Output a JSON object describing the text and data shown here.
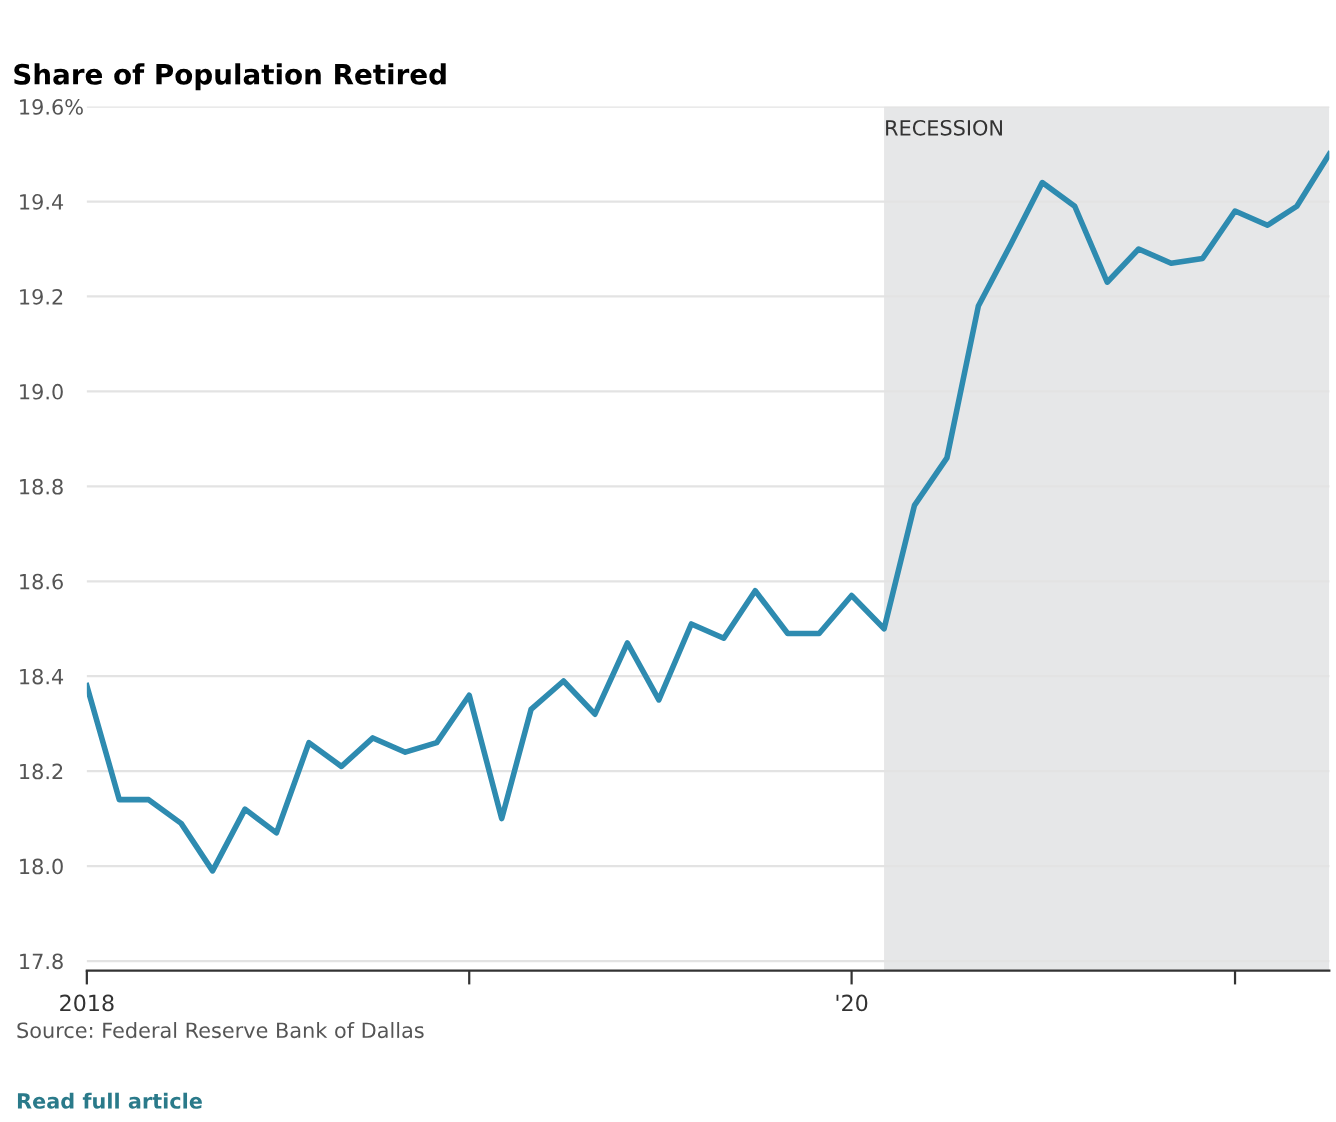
{
  "chart_data": {
    "type": "line",
    "title": "Share of Population Retired",
    "x": [
      "2018-01",
      "2018-02",
      "2018-03",
      "2018-04",
      "2018-05",
      "2018-06",
      "2018-07",
      "2018-08",
      "2018-09",
      "2018-10",
      "2018-11",
      "2018-12",
      "2019-01",
      "2019-02",
      "2019-03",
      "2019-04",
      "2019-05",
      "2019-06",
      "2019-07",
      "2019-08",
      "2019-09",
      "2019-10",
      "2019-11",
      "2019-12",
      "2020-01",
      "2020-02",
      "2020-03",
      "2020-04",
      "2020-05",
      "2020-06",
      "2020-07",
      "2020-08",
      "2020-09",
      "2020-10",
      "2020-11",
      "2020-12",
      "2021-01",
      "2021-02",
      "2021-03",
      "2021-04"
    ],
    "series": [
      {
        "color": "#2e8bb0",
        "values": [
          18.38,
          18.14,
          18.14,
          18.09,
          17.99,
          18.12,
          18.07,
          18.26,
          18.21,
          18.27,
          18.24,
          18.26,
          18.36,
          18.1,
          18.33,
          18.39,
          18.32,
          18.47,
          18.35,
          18.51,
          18.48,
          18.58,
          18.49,
          18.49,
          18.57,
          18.5,
          18.76,
          18.86,
          19.18,
          19.31,
          19.44,
          19.39,
          19.23,
          19.3,
          19.27,
          19.28,
          19.38,
          19.35,
          19.39,
          19.5
        ]
      }
    ],
    "xlim": [
      "2018-01",
      "2021-04"
    ],
    "xticks": [
      {
        "value": "2018-01",
        "label": "2018"
      },
      {
        "value": "2019-01",
        "label": null
      },
      {
        "value": "2020-01",
        "label": "'20"
      },
      {
        "value": "2021-01",
        "label": null
      }
    ],
    "ylim": [
      17.78,
      19.6
    ],
    "yticks": [
      17.8,
      {
        "value": 18.0,
        "label": "18.0"
      },
      18.2,
      18.4,
      18.6,
      18.8,
      {
        "value": 19.0,
        "label": "19.0"
      },
      19.2,
      19.4,
      {
        "value": 19.6,
        "label": "19.6%"
      }
    ],
    "grid": "y",
    "marker": "none",
    "line_style": "solid",
    "bands": [
      {
        "axis": "x",
        "from": "2020-02",
        "to": "2021-04",
        "label": "RECESSION",
        "color": "#e6e7e8"
      }
    ],
    "annotations": [
      "Source: Federal Reserve Bank of Dallas",
      "Read full article"
    ]
  }
}
